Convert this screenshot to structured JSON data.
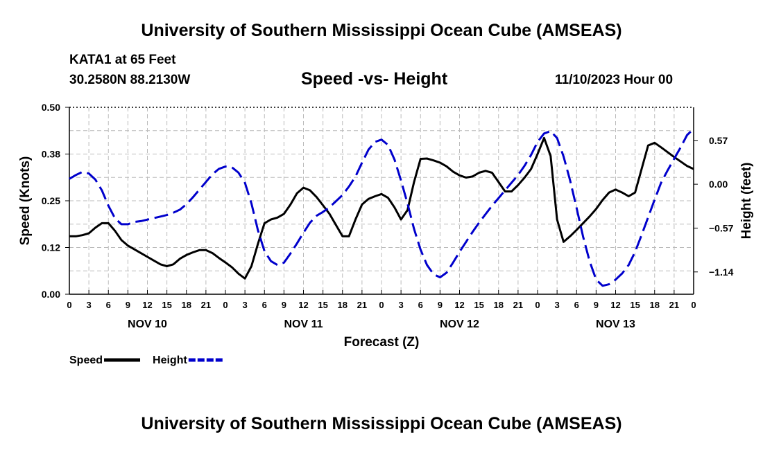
{
  "header": {
    "title": "University of Southern Mississippi Ocean Cube (AMSEAS)",
    "station": "KATA1 at 65 Feet",
    "coords": "30.2580N  88.2130W",
    "subtitle": "Speed -vs- Height",
    "datetime": "11/10/2023 Hour 00"
  },
  "footer": {
    "title": "University of Southern Mississippi Ocean Cube (AMSEAS)"
  },
  "chart_data": {
    "type": "line",
    "xlabel": "Forecast (Z)",
    "ylabel_left": "Speed (Knots)",
    "ylabel_right": "Height (feet)",
    "x_range_hours": [
      0,
      96
    ],
    "x_ticks": [
      {
        "h": 0,
        "label": "0"
      },
      {
        "h": 3,
        "label": "3"
      },
      {
        "h": 6,
        "label": "6"
      },
      {
        "h": 9,
        "label": "9"
      },
      {
        "h": 12,
        "label": "12"
      },
      {
        "h": 15,
        "label": "15"
      },
      {
        "h": 18,
        "label": "18"
      },
      {
        "h": 21,
        "label": "21"
      },
      {
        "h": 24,
        "label": "0"
      },
      {
        "h": 27,
        "label": "3"
      },
      {
        "h": 30,
        "label": "6"
      },
      {
        "h": 33,
        "label": "9"
      },
      {
        "h": 36,
        "label": "12"
      },
      {
        "h": 39,
        "label": "15"
      },
      {
        "h": 42,
        "label": "18"
      },
      {
        "h": 45,
        "label": "21"
      },
      {
        "h": 48,
        "label": "0"
      },
      {
        "h": 51,
        "label": "3"
      },
      {
        "h": 54,
        "label": "6"
      },
      {
        "h": 57,
        "label": "9"
      },
      {
        "h": 60,
        "label": "12"
      },
      {
        "h": 63,
        "label": "15"
      },
      {
        "h": 66,
        "label": "18"
      },
      {
        "h": 69,
        "label": "21"
      },
      {
        "h": 72,
        "label": "0"
      },
      {
        "h": 75,
        "label": "3"
      },
      {
        "h": 78,
        "label": "6"
      },
      {
        "h": 81,
        "label": "9"
      },
      {
        "h": 84,
        "label": "12"
      },
      {
        "h": 87,
        "label": "15"
      },
      {
        "h": 90,
        "label": "18"
      },
      {
        "h": 93,
        "label": "21"
      },
      {
        "h": 96,
        "label": "0"
      }
    ],
    "day_labels": [
      {
        "h": 12,
        "label": "NOV 10"
      },
      {
        "h": 36,
        "label": "NOV 11"
      },
      {
        "h": 60,
        "label": "NOV 12"
      },
      {
        "h": 84,
        "label": "NOV 13"
      }
    ],
    "y_left": {
      "range": [
        0,
        0.5
      ],
      "ticks": [
        0.0,
        0.125,
        0.25,
        0.375,
        0.5
      ],
      "tick_labels": [
        "0.00",
        "0.12",
        "0.25",
        "0.38",
        "0.50"
      ]
    },
    "y_right": {
      "range": [
        -1.43,
        1.0
      ],
      "ticks": [
        0.57,
        0.0,
        -0.57,
        -1.14
      ],
      "tick_labels": [
        "0.57",
        "0.00",
        "−0.57",
        "−1.14"
      ]
    },
    "series": [
      {
        "name": "Speed",
        "axis": "left",
        "color": "#000000",
        "dash": "solid",
        "points": [
          [
            0,
            0.155
          ],
          [
            1,
            0.155
          ],
          [
            2,
            0.158
          ],
          [
            3,
            0.163
          ],
          [
            4,
            0.178
          ],
          [
            5,
            0.19
          ],
          [
            6,
            0.19
          ],
          [
            7,
            0.17
          ],
          [
            8,
            0.145
          ],
          [
            9,
            0.13
          ],
          [
            10,
            0.12
          ],
          [
            11,
            0.11
          ],
          [
            12,
            0.1
          ],
          [
            13,
            0.09
          ],
          [
            14,
            0.08
          ],
          [
            15,
            0.075
          ],
          [
            16,
            0.08
          ],
          [
            17,
            0.095
          ],
          [
            18,
            0.105
          ],
          [
            19,
            0.112
          ],
          [
            20,
            0.118
          ],
          [
            21,
            0.118
          ],
          [
            22,
            0.11
          ],
          [
            23,
            0.097
          ],
          [
            24,
            0.085
          ],
          [
            25,
            0.072
          ],
          [
            26,
            0.055
          ],
          [
            27,
            0.042
          ],
          [
            28,
            0.075
          ],
          [
            29,
            0.135
          ],
          [
            30,
            0.19
          ],
          [
            31,
            0.2
          ],
          [
            32,
            0.205
          ],
          [
            33,
            0.215
          ],
          [
            34,
            0.24
          ],
          [
            35,
            0.27
          ],
          [
            36,
            0.285
          ],
          [
            37,
            0.278
          ],
          [
            38,
            0.26
          ],
          [
            39,
            0.238
          ],
          [
            40,
            0.215
          ],
          [
            41,
            0.185
          ],
          [
            42,
            0.155
          ],
          [
            43,
            0.155
          ],
          [
            44,
            0.2
          ],
          [
            45,
            0.24
          ],
          [
            46,
            0.255
          ],
          [
            47,
            0.262
          ],
          [
            48,
            0.268
          ],
          [
            49,
            0.258
          ],
          [
            50,
            0.232
          ],
          [
            51,
            0.2
          ],
          [
            52,
            0.225
          ],
          [
            53,
            0.3
          ],
          [
            54,
            0.362
          ],
          [
            55,
            0.363
          ],
          [
            56,
            0.358
          ],
          [
            57,
            0.352
          ],
          [
            58,
            0.342
          ],
          [
            59,
            0.328
          ],
          [
            60,
            0.318
          ],
          [
            61,
            0.312
          ],
          [
            62,
            0.315
          ],
          [
            63,
            0.325
          ],
          [
            64,
            0.33
          ],
          [
            65,
            0.325
          ],
          [
            66,
            0.3
          ],
          [
            67,
            0.275
          ],
          [
            68,
            0.275
          ],
          [
            69,
            0.292
          ],
          [
            70,
            0.312
          ],
          [
            71,
            0.335
          ],
          [
            72,
            0.375
          ],
          [
            73,
            0.418
          ],
          [
            74,
            0.37
          ],
          [
            75,
            0.2
          ],
          [
            76,
            0.14
          ],
          [
            77,
            0.155
          ],
          [
            78,
            0.172
          ],
          [
            79,
            0.19
          ],
          [
            80,
            0.208
          ],
          [
            81,
            0.228
          ],
          [
            82,
            0.252
          ],
          [
            83,
            0.272
          ],
          [
            84,
            0.28
          ],
          [
            85,
            0.272
          ],
          [
            86,
            0.262
          ],
          [
            87,
            0.272
          ],
          [
            88,
            0.335
          ],
          [
            89,
            0.398
          ],
          [
            90,
            0.405
          ],
          [
            91,
            0.393
          ],
          [
            92,
            0.38
          ],
          [
            93,
            0.367
          ],
          [
            94,
            0.355
          ],
          [
            95,
            0.343
          ],
          [
            96,
            0.335
          ]
        ]
      },
      {
        "name": "Height",
        "axis": "right",
        "color": "#0000cc",
        "dash": "dashed",
        "points": [
          [
            0,
            0.07
          ],
          [
            1,
            0.12
          ],
          [
            2,
            0.16
          ],
          [
            3,
            0.14
          ],
          [
            4,
            0.06
          ],
          [
            5,
            -0.08
          ],
          [
            6,
            -0.28
          ],
          [
            7,
            -0.44
          ],
          [
            8,
            -0.52
          ],
          [
            9,
            -0.52
          ],
          [
            10,
            -0.49
          ],
          [
            11,
            -0.48
          ],
          [
            12,
            -0.46
          ],
          [
            13,
            -0.44
          ],
          [
            14,
            -0.42
          ],
          [
            15,
            -0.4
          ],
          [
            16,
            -0.37
          ],
          [
            17,
            -0.33
          ],
          [
            18,
            -0.26
          ],
          [
            19,
            -0.17
          ],
          [
            20,
            -0.07
          ],
          [
            21,
            0.03
          ],
          [
            22,
            0.13
          ],
          [
            23,
            0.2
          ],
          [
            24,
            0.23
          ],
          [
            25,
            0.22
          ],
          [
            26,
            0.15
          ],
          [
            27,
            0.02
          ],
          [
            28,
            -0.25
          ],
          [
            29,
            -0.6
          ],
          [
            30,
            -0.87
          ],
          [
            31,
            -1.0
          ],
          [
            32,
            -1.05
          ],
          [
            33,
            -1.02
          ],
          [
            34,
            -0.9
          ],
          [
            35,
            -0.77
          ],
          [
            36,
            -0.63
          ],
          [
            37,
            -0.5
          ],
          [
            38,
            -0.41
          ],
          [
            39,
            -0.36
          ],
          [
            40,
            -0.3
          ],
          [
            41,
            -0.22
          ],
          [
            42,
            -0.14
          ],
          [
            43,
            -0.03
          ],
          [
            44,
            0.1
          ],
          [
            45,
            0.28
          ],
          [
            46,
            0.45
          ],
          [
            47,
            0.55
          ],
          [
            48,
            0.58
          ],
          [
            49,
            0.51
          ],
          [
            50,
            0.32
          ],
          [
            51,
            0.05
          ],
          [
            52,
            -0.25
          ],
          [
            53,
            -0.58
          ],
          [
            54,
            -0.85
          ],
          [
            55,
            -1.05
          ],
          [
            56,
            -1.17
          ],
          [
            57,
            -1.21
          ],
          [
            58,
            -1.15
          ],
          [
            59,
            -1.02
          ],
          [
            60,
            -0.88
          ],
          [
            61,
            -0.75
          ],
          [
            62,
            -0.62
          ],
          [
            63,
            -0.5
          ],
          [
            64,
            -0.39
          ],
          [
            65,
            -0.28
          ],
          [
            66,
            -0.18
          ],
          [
            67,
            -0.08
          ],
          [
            68,
            0.02
          ],
          [
            69,
            0.12
          ],
          [
            70,
            0.24
          ],
          [
            71,
            0.38
          ],
          [
            72,
            0.55
          ],
          [
            73,
            0.66
          ],
          [
            74,
            0.69
          ],
          [
            75,
            0.6
          ],
          [
            76,
            0.36
          ],
          [
            77,
            0.05
          ],
          [
            78,
            -0.31
          ],
          [
            79,
            -0.68
          ],
          [
            80,
            -1.0
          ],
          [
            81,
            -1.24
          ],
          [
            82,
            -1.32
          ],
          [
            83,
            -1.3
          ],
          [
            84,
            -1.24
          ],
          [
            85,
            -1.16
          ],
          [
            86,
            -1.05
          ],
          [
            87,
            -0.88
          ],
          [
            88,
            -0.66
          ],
          [
            89,
            -0.43
          ],
          [
            90,
            -0.2
          ],
          [
            91,
            0.02
          ],
          [
            92,
            0.18
          ],
          [
            93,
            0.33
          ],
          [
            94,
            0.48
          ],
          [
            95,
            0.64
          ],
          [
            96,
            0.72
          ]
        ]
      }
    ],
    "legend": [
      {
        "label": "Speed",
        "color": "#000000",
        "dash": "solid"
      },
      {
        "label": "Height",
        "color": "#0000cc",
        "dash": "dashed"
      }
    ]
  }
}
